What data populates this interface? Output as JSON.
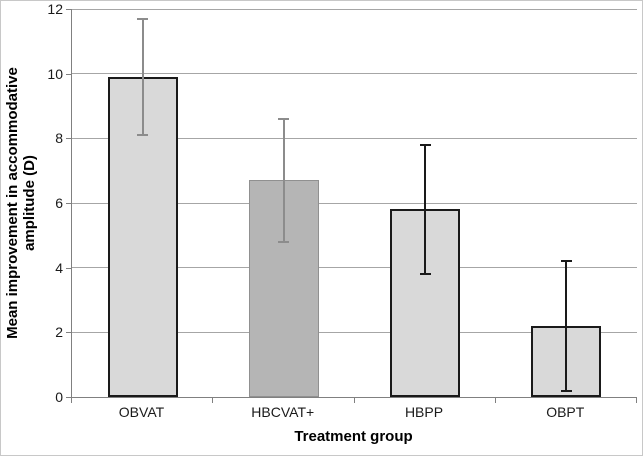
{
  "chart_data": {
    "type": "bar",
    "title": "",
    "xlabel": "Treatment group",
    "ylabel": [
      "Mean improvement in accommodative",
      "amplitude (D)"
    ],
    "categories": [
      "OBVAT",
      "HBCVAT+",
      "HBPP",
      "OBPT"
    ],
    "values": [
      9.9,
      6.7,
      5.8,
      2.2
    ],
    "error_low": [
      8.1,
      4.8,
      3.8,
      0.2
    ],
    "error_high": [
      11.7,
      8.6,
      7.8,
      4.2
    ],
    "ylim": [
      0,
      12
    ],
    "y_tick_step": 2,
    "y_tick_labels": [
      "0",
      "2",
      "4",
      "6",
      "8",
      "10",
      "12"
    ],
    "grid": "horizontal",
    "legend": "none",
    "bars": [
      {
        "category": "OBVAT",
        "fill": "#d9d9d9",
        "border": "#1a1a1a",
        "border_width": 2,
        "error_color": "#8c8c8c"
      },
      {
        "category": "HBCVAT+",
        "fill": "#b5b5b5",
        "border": "#909090",
        "border_width": 1,
        "error_color": "#8c8c8c"
      },
      {
        "category": "HBPP",
        "fill": "#d9d9d9",
        "border": "#1a1a1a",
        "border_width": 2,
        "error_color": "#1a1a1a"
      },
      {
        "category": "OBPT",
        "fill": "#d9d9d9",
        "border": "#1a1a1a",
        "border_width": 2,
        "error_color": "#1a1a1a"
      }
    ],
    "colors": {
      "gridline": "#a6a6a6",
      "axis": "#808080",
      "text": "#000000",
      "background": "#ffffff"
    }
  }
}
